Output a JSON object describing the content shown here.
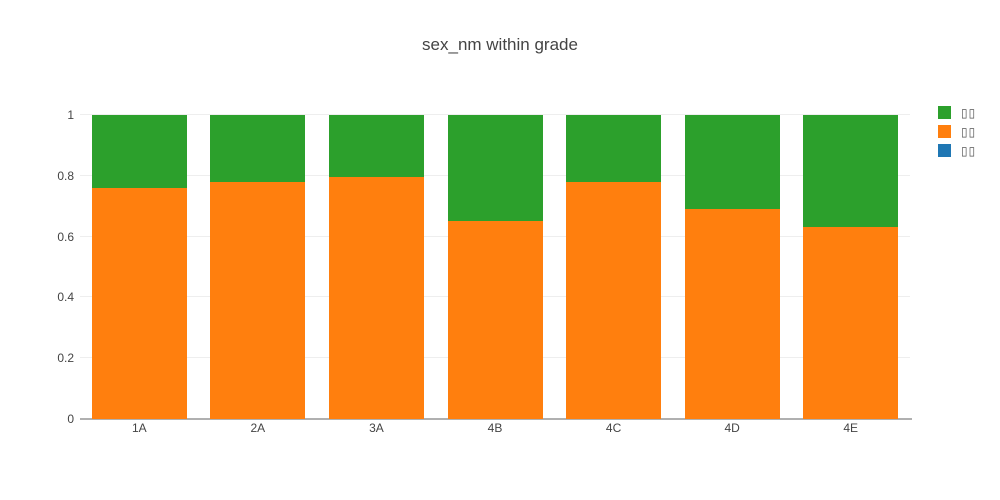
{
  "page": {
    "background": "#ffffff"
  },
  "chart_data": {
    "type": "bar",
    "barmode": "stack",
    "normalized": true,
    "title": "sex_nm within grade",
    "title_color": "#444444",
    "categories": [
      "1A",
      "2A",
      "3A",
      "4B",
      "4C",
      "4D",
      "4E"
    ],
    "series": [
      {
        "label": "▯▯",
        "color": "#1f77b4",
        "values": [
          0,
          0,
          0,
          0,
          0,
          0,
          0
        ]
      },
      {
        "label": "▯▯",
        "color": "#ff7f0e",
        "values": [
          0.76,
          0.78,
          0.795,
          0.65,
          0.78,
          0.69,
          0.63
        ]
      },
      {
        "label": "▯▯",
        "color": "#2ca02c",
        "values": [
          0.24,
          0.22,
          0.205,
          0.35,
          0.22,
          0.31,
          0.37
        ]
      }
    ],
    "legend": {
      "position": "right",
      "order": [
        2,
        1,
        0
      ]
    },
    "xaxis": {
      "tick_labels": [
        "1A",
        "2A",
        "3A",
        "4B",
        "4C",
        "4D",
        "4E"
      ]
    },
    "yaxis": {
      "tick_labels": [
        "0",
        "0.2",
        "0.4",
        "0.6",
        "0.8",
        "1"
      ],
      "range": [
        0,
        1
      ],
      "grid": true,
      "grid_color": "#eeeeee",
      "zeroline_color": "#b0b0b0"
    }
  }
}
